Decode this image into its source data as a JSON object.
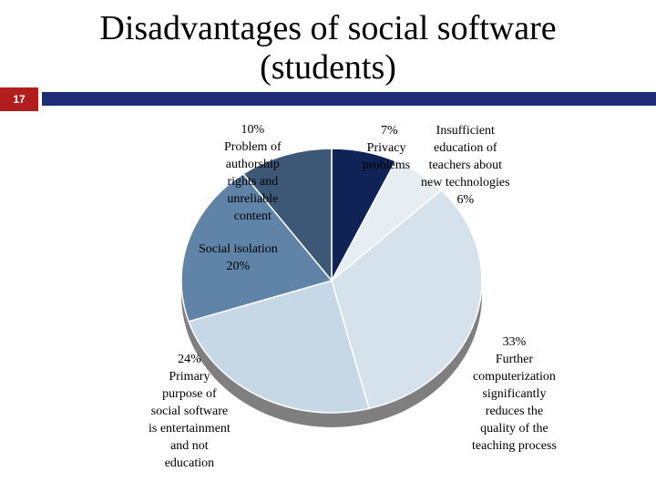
{
  "slide": {
    "number": "17",
    "title_line1": "Disadvantages of social software",
    "title_line2": "(students)"
  },
  "chart_data": {
    "type": "pie",
    "title": "Disadvantages of social software (students)",
    "slices": [
      {
        "name": "Privacy problems",
        "value": 7,
        "label": "7%",
        "color": "#0f2357"
      },
      {
        "name": "Insufficient education of teachers about new technologies",
        "value": 6,
        "label": "6%",
        "color": "#e6edf3"
      },
      {
        "name": "Further computerization significantly reduces the quality of the teaching process",
        "value": 33,
        "label": "33%",
        "color": "#d5e1eb"
      },
      {
        "name": "Primary purpose of social software is entertainment and not education",
        "value": 24,
        "label": "24%",
        "color": "#c6d7e6"
      },
      {
        "name": "Social isolation",
        "value": 20,
        "label": "20%",
        "color": "#5f84a8"
      },
      {
        "name": "Problem of authorship rights and unreliable content",
        "value": 10,
        "label": "10%",
        "color": "#3c5876"
      }
    ],
    "labels": {
      "privacy": [
        "7%",
        "Privacy",
        "problems"
      ],
      "teachers": [
        "Insufficient",
        "education of",
        "teachers about",
        "new technologies",
        "6%"
      ],
      "computerization": [
        "33%",
        "Further",
        "computerization",
        "significantly",
        "reduces the",
        "quality of the",
        "teaching process"
      ],
      "entertainment": [
        "24%",
        "Primary",
        "purpose of",
        "social software",
        "is entertainment",
        "and not",
        "education"
      ],
      "isolation": [
        "Social isolation",
        "20%"
      ],
      "authorship": [
        "10%",
        "Problem of",
        "authorship",
        "rights and",
        "unreliable",
        "content"
      ]
    }
  }
}
